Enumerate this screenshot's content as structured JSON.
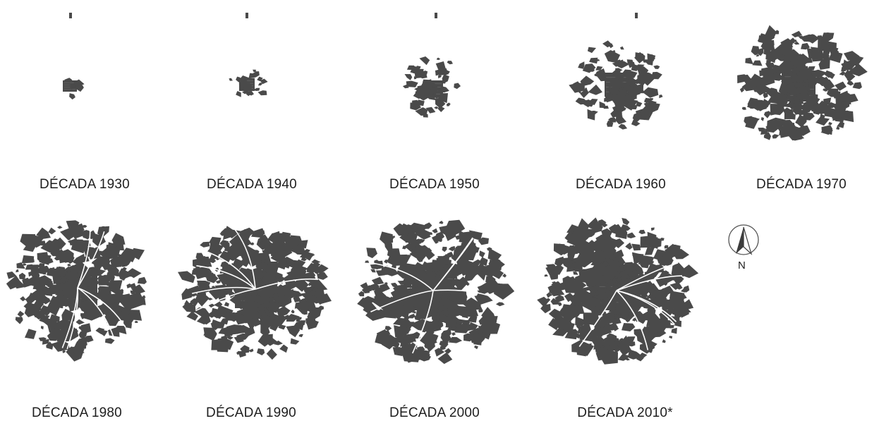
{
  "title": "",
  "colors": {
    "urban": "#4a4a4a",
    "grid": "#6a6a6a",
    "text": "#1e1e1e",
    "background": "#ffffff"
  },
  "north_arrow": {
    "label": "N",
    "icon": "north-arrow-icon"
  },
  "panels": [
    {
      "caption": "DÉCADA 1930",
      "stage": 0
    },
    {
      "caption": "DÉCADA 1940",
      "stage": 1
    },
    {
      "caption": "DÉCADA 1950",
      "stage": 2
    },
    {
      "caption": "DÉCADA 1960",
      "stage": 3
    },
    {
      "caption": "DÉCADA 1970",
      "stage": 4
    },
    {
      "caption": "DÉCADA 1980",
      "stage": 5
    },
    {
      "caption": "DÉCADA 1990",
      "stage": 6
    },
    {
      "caption": "DÉCADA 2000",
      "stage": 7
    },
    {
      "caption": "DÉCADA 2010*",
      "stage": 8
    }
  ]
}
